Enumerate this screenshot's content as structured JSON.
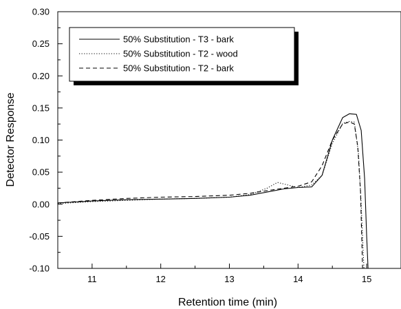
{
  "chart_data": {
    "type": "line",
    "title": "",
    "xlabel": "Retention time (min)",
    "ylabel": "Detector Response",
    "xlim": [
      10.5,
      15.5
    ],
    "ylim": [
      -0.1,
      0.3
    ],
    "grid": false,
    "legend_position": "top-left",
    "x_ticks": [
      "11",
      "12",
      "13",
      "14",
      "15"
    ],
    "x_tick_values": [
      11,
      12,
      13,
      14,
      15
    ],
    "y_ticks": [
      "-0.10",
      "-0.05",
      "0.00",
      "0.05",
      "0.10",
      "0.15",
      "0.20",
      "0.25",
      "0.30"
    ],
    "y_tick_values": [
      -0.1,
      -0.05,
      0.0,
      0.05,
      0.1,
      0.15,
      0.2,
      0.25,
      0.3
    ],
    "series": [
      {
        "name": "50% Substitution - T3 - bark",
        "line_style": "solid",
        "x": [
          10.5,
          11.0,
          11.5,
          12.0,
          12.5,
          13.0,
          13.3,
          13.6,
          13.8,
          14.0,
          14.2,
          14.35,
          14.5,
          14.65,
          14.75,
          14.85,
          14.92,
          14.97,
          15.0,
          15.02
        ],
        "y": [
          0.002,
          0.005,
          0.007,
          0.008,
          0.009,
          0.011,
          0.014,
          0.02,
          0.024,
          0.026,
          0.027,
          0.045,
          0.1,
          0.135,
          0.141,
          0.14,
          0.115,
          0.04,
          -0.05,
          -0.1
        ]
      },
      {
        "name": "50% Substitution - T2 - wood",
        "line_style": "dotted",
        "x": [
          10.5,
          11.0,
          11.5,
          12.0,
          12.5,
          13.0,
          13.3,
          13.55,
          13.7,
          13.85,
          14.0,
          14.2,
          14.35,
          14.5,
          14.65,
          14.75,
          14.82,
          14.88,
          14.92,
          14.96
        ],
        "y": [
          0.001,
          0.004,
          0.006,
          0.008,
          0.009,
          0.011,
          0.015,
          0.025,
          0.034,
          0.03,
          0.026,
          0.03,
          0.045,
          0.095,
          0.126,
          0.129,
          0.128,
          0.08,
          0.0,
          -0.1
        ]
      },
      {
        "name": "50% Substitution - T2 - bark",
        "line_style": "dashed",
        "x": [
          10.5,
          11.0,
          11.5,
          12.0,
          12.5,
          13.0,
          13.3,
          13.6,
          13.8,
          14.0,
          14.2,
          14.35,
          14.5,
          14.65,
          14.75,
          14.82,
          14.87,
          14.91,
          14.94
        ],
        "y": [
          0.002,
          0.006,
          0.009,
          0.011,
          0.012,
          0.014,
          0.017,
          0.022,
          0.025,
          0.028,
          0.035,
          0.06,
          0.1,
          0.125,
          0.128,
          0.125,
          0.09,
          0.02,
          -0.1
        ]
      }
    ]
  }
}
